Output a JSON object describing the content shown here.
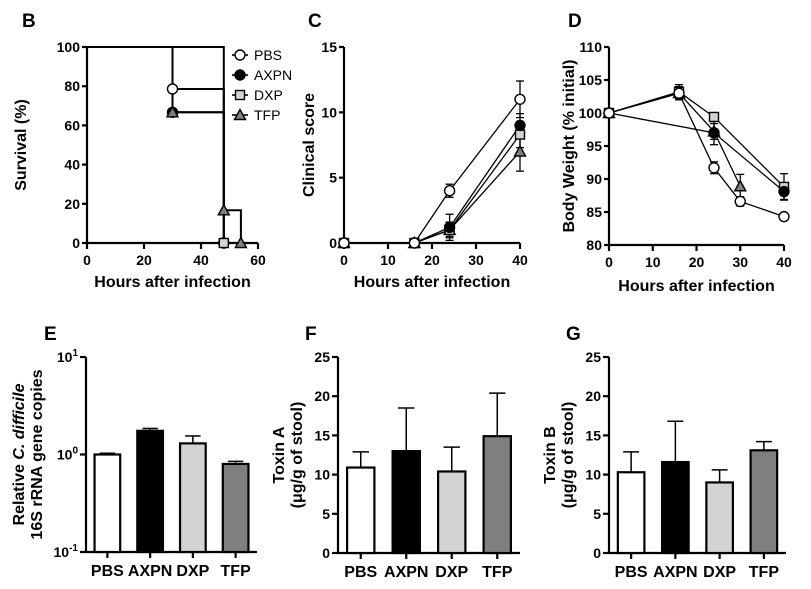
{
  "colors": {
    "PBS": "#ffffff",
    "AXPN": "#000000",
    "DXP": "#d3d3d3",
    "TFP": "#7f7f7f"
  },
  "chart_data": [
    {
      "panel": "B",
      "type": "line",
      "subtype": "survival-step",
      "xlabel": "Hours after infection",
      "ylabel": "Survival (%)",
      "xlim": [
        0,
        60
      ],
      "ylim": [
        0,
        100
      ],
      "xticks": [
        0,
        20,
        40,
        60
      ],
      "yticks": [
        0,
        20,
        40,
        60,
        80,
        100
      ],
      "legend": {
        "position": "top-right",
        "entries": [
          "PBS",
          "AXPN",
          "DXP",
          "TFP"
        ]
      },
      "series": [
        {
          "name": "PBS",
          "marker": "circle-open",
          "x": [
            0,
            30,
            48
          ],
          "y": [
            100,
            78.6,
            0
          ]
        },
        {
          "name": "AXPN",
          "marker": "circle-filled",
          "x": [
            0,
            30,
            48
          ],
          "y": [
            100,
            66.7,
            0
          ]
        },
        {
          "name": "DXP",
          "marker": "square",
          "x": [
            0,
            48
          ],
          "y": [
            100,
            0
          ]
        },
        {
          "name": "TFP",
          "marker": "triangle",
          "x": [
            0,
            30,
            48,
            54
          ],
          "y": [
            100,
            66.7,
            16.7,
            0
          ]
        }
      ]
    },
    {
      "panel": "C",
      "type": "line",
      "xlabel": "Hours after infection",
      "ylabel": "Clinical score",
      "xlim": [
        0,
        40
      ],
      "ylim": [
        0,
        15
      ],
      "xticks": [
        0,
        10,
        20,
        30,
        40
      ],
      "yticks": [
        0,
        5,
        10,
        15
      ],
      "series": [
        {
          "name": "PBS",
          "marker": "circle-open",
          "x": [
            0,
            16,
            24,
            40
          ],
          "y": [
            0,
            0,
            4.0,
            11.0
          ],
          "err": [
            0,
            0,
            0.5,
            1.4
          ]
        },
        {
          "name": "AXPN",
          "marker": "circle-filled",
          "x": [
            0,
            16,
            24,
            40
          ],
          "y": [
            0,
            0,
            1.2,
            9.0
          ],
          "err": [
            0,
            0,
            1.0,
            0.9
          ]
        },
        {
          "name": "DXP",
          "marker": "square",
          "x": [
            0,
            16,
            24,
            40
          ],
          "y": [
            0,
            0,
            1.0,
            8.3
          ],
          "err": [
            0,
            0,
            0.6,
            1.0
          ]
        },
        {
          "name": "TFP",
          "marker": "triangle",
          "x": [
            0,
            16,
            24,
            40
          ],
          "y": [
            0,
            0,
            1.0,
            7.0
          ],
          "err": [
            0,
            0,
            0.5,
            1.5
          ]
        }
      ]
    },
    {
      "panel": "D",
      "type": "line",
      "xlabel": "Hours after infection",
      "ylabel": "Body Weight (% initial)",
      "xlim": [
        0,
        40
      ],
      "ylim": [
        80,
        110
      ],
      "xticks": [
        0,
        10,
        20,
        30,
        40
      ],
      "yticks": [
        80,
        85,
        90,
        95,
        100,
        105,
        110
      ],
      "series": [
        {
          "name": "PBS",
          "marker": "circle-open",
          "x": [
            0,
            16,
            24,
            30,
            40
          ],
          "y": [
            100,
            103.0,
            91.7,
            86.6,
            84.3
          ],
          "err": [
            0,
            1.0,
            0.9,
            0.7,
            0
          ]
        },
        {
          "name": "AXPN",
          "marker": "circle-filled",
          "x": [
            0,
            24,
            40
          ],
          "y": [
            100,
            97.0,
            88.1
          ],
          "err": [
            0,
            1.8,
            1.2
          ]
        },
        {
          "name": "DXP",
          "marker": "square",
          "x": [
            0,
            16,
            24,
            40
          ],
          "y": [
            100,
            103.2,
            99.4,
            88.8
          ],
          "err": [
            0,
            1.1,
            0,
            2.0
          ]
        },
        {
          "name": "TFP",
          "marker": "triangle",
          "x": [
            0,
            16,
            24,
            30
          ],
          "y": [
            100,
            103.0,
            97.2,
            88.9
          ],
          "err": [
            0,
            1.0,
            1.2,
            1.8
          ]
        }
      ]
    },
    {
      "panel": "E",
      "type": "bar",
      "yscale": "log",
      "categories": [
        "PBS",
        "AXPN",
        "DXP",
        "TFP"
      ],
      "values": [
        1.0,
        1.75,
        1.3,
        0.8
      ],
      "err_upper": [
        1.03,
        1.85,
        1.55,
        0.85
      ],
      "ylabel": "Relative C. difficile 16S rRNA gene copies",
      "ylabel_lines": [
        "Relative ",
        "C. difficile",
        "16S rRNA gene copies"
      ],
      "ylim": [
        0.1,
        10
      ],
      "yticks": [
        {
          "base": "10",
          "exp": "-1",
          "v": 0.1
        },
        {
          "base": "10",
          "exp": "0",
          "v": 1
        },
        {
          "base": "10",
          "exp": "1",
          "v": 10
        }
      ],
      "xlabel": ""
    },
    {
      "panel": "F",
      "type": "bar",
      "categories": [
        "PBS",
        "AXPN",
        "DXP",
        "TFP"
      ],
      "values": [
        10.9,
        13.0,
        10.4,
        14.9
      ],
      "err_upper": [
        12.9,
        18.5,
        13.5,
        20.4
      ],
      "ylabel": "Toxin A",
      "ylabel2": "(μg/g of stool)",
      "ylim": [
        0,
        25
      ],
      "yticks": [
        0,
        5,
        10,
        15,
        20,
        25
      ],
      "xlabel": ""
    },
    {
      "panel": "G",
      "type": "bar",
      "categories": [
        "PBS",
        "AXPN",
        "DXP",
        "TFP"
      ],
      "values": [
        10.3,
        11.6,
        9.0,
        13.1
      ],
      "err_upper": [
        12.9,
        16.8,
        10.6,
        14.2
      ],
      "ylabel": "Toxin B",
      "ylabel2": "(μg/g of stool)",
      "ylim": [
        0,
        25
      ],
      "yticks": [
        0,
        5,
        10,
        15,
        20,
        25
      ],
      "xlabel": ""
    }
  ]
}
